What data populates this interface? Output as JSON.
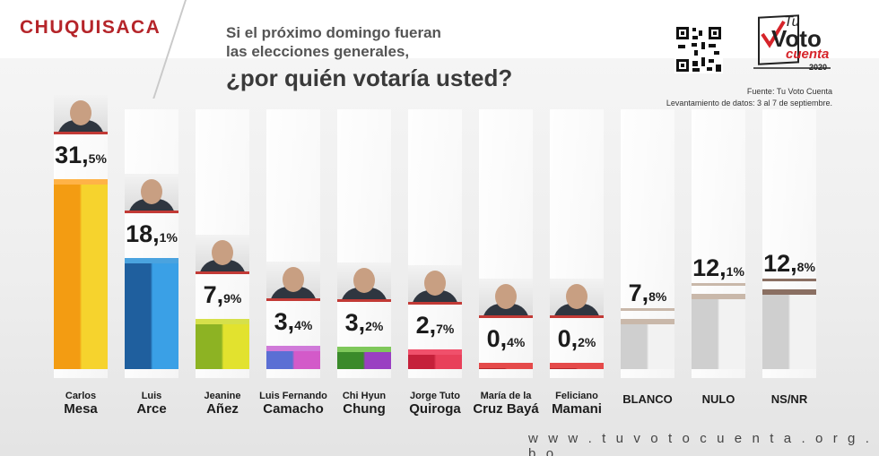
{
  "header": {
    "region": "CHUQUISACA",
    "question_line1": "Si el próximo domingo fueran",
    "question_line2": "las elecciones generales,",
    "question_main": "¿por quién votaría usted?"
  },
  "logo": {
    "tu": "Tu",
    "voto": "Voto",
    "cuenta": "cuenta",
    "year": "2020"
  },
  "source": {
    "fuente": "Fuente: Tu Voto Cuenta",
    "levantamiento": "Levantamiento de datos: 3 al 7 de septiembre."
  },
  "footer": {
    "url": "w w w . t u v o t o c u e n t a . o r g . b o"
  },
  "chart_data": {
    "type": "bar",
    "title": "¿por quién votaría usted?",
    "ylim": [
      0,
      31.5
    ],
    "unit": "%",
    "categories": [
      {
        "line1": "Carlos",
        "line2": "Mesa",
        "value": 31.5,
        "int": "31,",
        "dec": "5%",
        "color_top": "#ffb347",
        "color_a": "#f39c12",
        "color_b": "#f6d32d",
        "photo": true
      },
      {
        "line1": "Luis",
        "line2": "Arce",
        "value": 18.1,
        "int": "18,",
        "dec": "1%",
        "color_top": "#4aa3df",
        "color_a": "#1f5f9e",
        "color_b": "#3aa0e6",
        "photo": true
      },
      {
        "line1": "Jeanine",
        "line2": "Añez",
        "value": 7.9,
        "int": "7,",
        "dec": "9%",
        "color_top": "#d6e04a",
        "color_a": "#8db323",
        "color_b": "#e2e22e",
        "photo": true
      },
      {
        "line1": "Luis Fernando",
        "line2": "Camacho",
        "value": 3.4,
        "int": "3,",
        "dec": "4%",
        "color_top": "#d07ad9",
        "color_a": "#5b6fd4",
        "color_b": "#d35ac9",
        "photo": true
      },
      {
        "line1": "Chi Hyun",
        "line2": "Chung",
        "value": 3.2,
        "int": "3,",
        "dec": "2%",
        "color_top": "#7fc85b",
        "color_a": "#3a8a2a",
        "color_b": "#9a3fc2",
        "photo": true
      },
      {
        "line1": "Jorge Tuto",
        "line2": "Quiroga",
        "value": 2.7,
        "int": "2,",
        "dec": "7%",
        "color_top": "#f0506b",
        "color_a": "#c5203a",
        "color_b": "#e8405a",
        "photo": true
      },
      {
        "line1": "María de la",
        "line2": "Cruz Bayá",
        "value": 0.4,
        "int": "0,",
        "dec": "4%",
        "color_top": "#e54a4a",
        "color_a": "#b8252a",
        "color_b": "#e54a4a",
        "photo": true
      },
      {
        "line1": "Feliciano",
        "line2": "Mamani",
        "value": 0.2,
        "int": "0,",
        "dec": "2%",
        "color_top": "#e54a4a",
        "color_a": "#b8252a",
        "color_b": "#e54a4a",
        "photo": true
      },
      {
        "line1": "",
        "line2": "BLANCO",
        "value": 7.8,
        "int": "7,",
        "dec": "8%",
        "color_top": "#c9b8aa",
        "color_a": "#cfcfcf",
        "color_b": "#f2f2f2",
        "photo": false
      },
      {
        "line1": "",
        "line2": "NULO",
        "value": 12.1,
        "int": "12,",
        "dec": "1%",
        "color_top": "#c9b8aa",
        "color_a": "#cfcfcf",
        "color_b": "#f2f2f2",
        "photo": false
      },
      {
        "line1": "",
        "line2": "NS/NR",
        "value": 12.8,
        "int": "12,",
        "dec": "8%",
        "color_top": "#8a6f62",
        "color_a": "#cfcfcf",
        "color_b": "#f2f2f2",
        "photo": false
      }
    ]
  }
}
